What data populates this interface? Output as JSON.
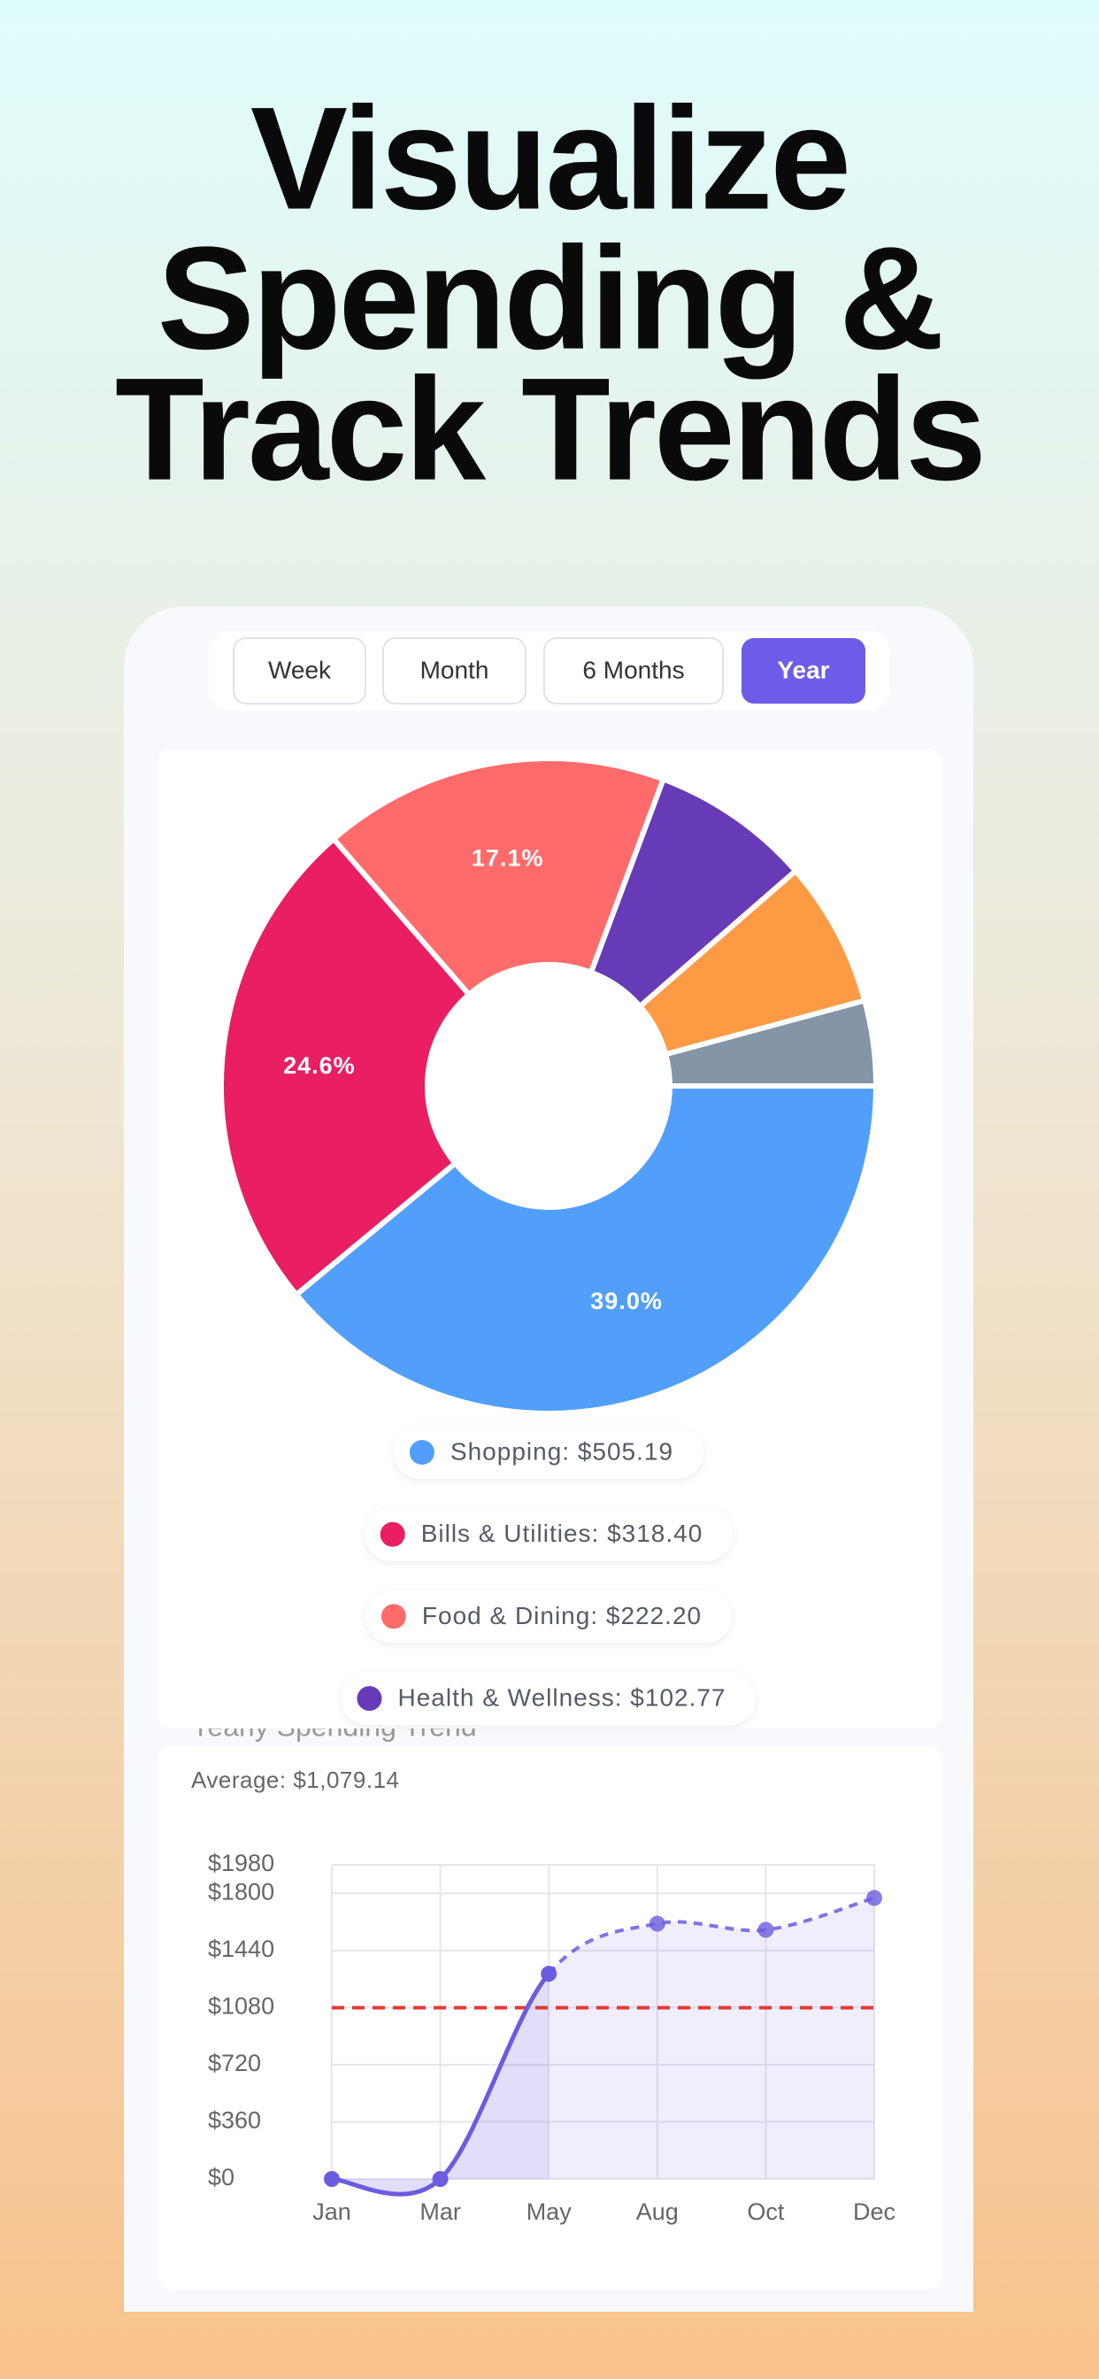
{
  "headline": [
    "Visualize",
    "Spending &",
    "Track Trends"
  ],
  "tabs": [
    "Week",
    "Month",
    "6 Months",
    "Year"
  ],
  "active_tab": "Year",
  "chart_data": [
    {
      "type": "pie",
      "categories": [
        "Shopping",
        "Bills & Utilities",
        "Food & Dining",
        "Health & Wellness",
        null,
        null
      ],
      "values": [
        39.0,
        24.6,
        17.1,
        7.9,
        7.2,
        4.2
      ],
      "value_labels": [
        "39.0%",
        "24.6%",
        "17.1%",
        null,
        null,
        null
      ],
      "colors": [
        "#529ffb",
        "#e91e63",
        "#ff6b6b",
        "#673ab7",
        "#ff9a44",
        "#8395a7"
      ],
      "legend": [
        "Shopping: $505.19",
        "Bills & Utilities: $318.40",
        "Food & Dining: $222.20",
        "Health & Wellness: $102.77"
      ]
    },
    {
      "type": "line",
      "title": "Yearly Spending Trend",
      "subtitle": "Average: $1,079.14",
      "categories": [
        "Jan",
        "Mar",
        "May",
        "Aug",
        "Oct",
        "Dec"
      ],
      "values": [
        0,
        0,
        1293,
        1609,
        1570,
        1771
      ],
      "color": "#6b5ce0",
      "reference_line": {
        "value": 1079.14,
        "color": "#e53935"
      },
      "ylim": [
        0,
        1980
      ],
      "yticks": [
        {
          "value": 0,
          "label": "$0"
        },
        {
          "value": 360,
          "label": "$360"
        },
        {
          "value": 720,
          "label": "$720"
        },
        {
          "value": 1080,
          "label": "$1080"
        },
        {
          "value": 1440,
          "label": "$1440"
        },
        {
          "value": 1800,
          "label": "$1800"
        },
        {
          "value": 1980,
          "label": "$1980"
        }
      ],
      "grid": true
    }
  ]
}
